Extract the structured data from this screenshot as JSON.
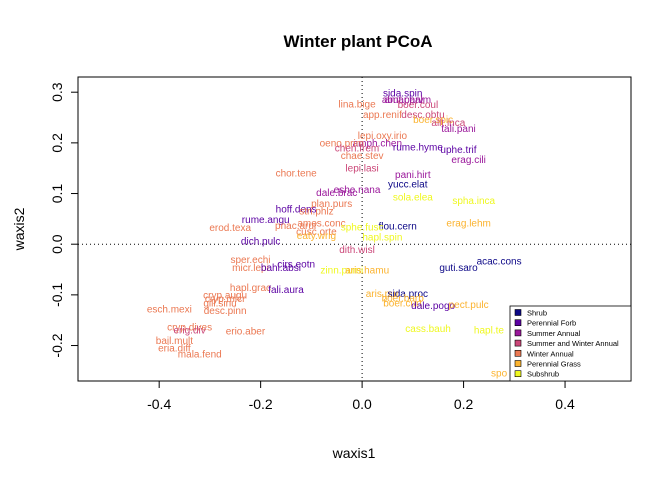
{
  "chart_data": {
    "type": "scatter",
    "title": "Winter plant PCoA",
    "xlabel": "waxis1",
    "ylabel": "waxis2",
    "xlim": [
      -0.56,
      0.53
    ],
    "ylim": [
      -0.27,
      0.33
    ],
    "x_ticks": [
      -0.4,
      -0.2,
      0.0,
      0.2,
      0.4
    ],
    "x_tick_labels": [
      "-0.4",
      "-0.2",
      "0.0",
      "0.2",
      "0.4"
    ],
    "y_ticks": [
      -0.2,
      -0.1,
      0.0,
      0.1,
      0.2,
      0.3
    ],
    "y_tick_labels": [
      "-0.2",
      "-0.1",
      "0.0",
      "0.1",
      "0.2",
      "0.3"
    ],
    "reference_lines": {
      "x": 0,
      "y": 0,
      "style": "dotted"
    },
    "legend_position": "bottom-right",
    "groups": [
      {
        "name": "Shrub",
        "color": "#0d0887"
      },
      {
        "name": "Perennial Forb",
        "color": "#5b02a3"
      },
      {
        "name": "Summer Annual",
        "color": "#9a179b"
      },
      {
        "name": "Summer and Winter Annual",
        "color": "#cb4678"
      },
      {
        "name": "Winter Annual",
        "color": "#eb7852"
      },
      {
        "name": "Perennial Grass",
        "color": "#fbb32f"
      },
      {
        "name": "Subshrub",
        "color": "#eff821"
      }
    ],
    "points": [
      {
        "label": "sida.spin",
        "x": 0.08,
        "y": 0.298,
        "group": 1
      },
      {
        "label": "abut.parv",
        "x": 0.08,
        "y": 0.286,
        "group": 2
      },
      {
        "label": "amar.palm",
        "x": 0.09,
        "y": 0.286,
        "group": 2
      },
      {
        "label": "lina.bige",
        "x": -0.01,
        "y": 0.277,
        "group": 4
      },
      {
        "label": "boer.coul",
        "x": 0.11,
        "y": 0.276,
        "group": 3
      },
      {
        "label": "app.renif",
        "x": 0.04,
        "y": 0.256,
        "group": 4
      },
      {
        "label": "desc.obtu",
        "x": 0.12,
        "y": 0.256,
        "group": 3
      },
      {
        "label": "boer.spic",
        "x": 0.14,
        "y": 0.246,
        "group": 5
      },
      {
        "label": "allt.inca",
        "x": 0.17,
        "y": 0.24,
        "group": 3
      },
      {
        "label": "tali.pani",
        "x": 0.19,
        "y": 0.228,
        "group": 2
      },
      {
        "label": "lepi.oxy.irio",
        "x": 0.04,
        "y": 0.215,
        "group": 4
      },
      {
        "label": "amph.chen",
        "x": 0.03,
        "y": 0.2,
        "group": 2
      },
      {
        "label": "oeno.prim",
        "x": -0.04,
        "y": 0.2,
        "group": 4
      },
      {
        "label": "rume.hyme",
        "x": 0.11,
        "y": 0.192,
        "group": 1
      },
      {
        "label": "uphe.trif",
        "x": 0.19,
        "y": 0.187,
        "group": 1
      },
      {
        "label": "chen.frem",
        "x": -0.01,
        "y": 0.19,
        "group": 3
      },
      {
        "label": "chae.stev",
        "x": 0.0,
        "y": 0.175,
        "group": 4
      },
      {
        "label": "erag.cili",
        "x": 0.21,
        "y": 0.167,
        "group": 2
      },
      {
        "label": "lepi.lasi",
        "x": 0.0,
        "y": 0.15,
        "group": 3
      },
      {
        "label": "pani.hirt",
        "x": 0.1,
        "y": 0.138,
        "group": 2
      },
      {
        "label": "chor.tene",
        "x": -0.13,
        "y": 0.141,
        "group": 4
      },
      {
        "label": "yucc.elat",
        "x": 0.09,
        "y": 0.119,
        "group": 0
      },
      {
        "label": "eshe.nana",
        "x": -0.01,
        "y": 0.108,
        "group": 2
      },
      {
        "label": "dale.brac",
        "x": -0.05,
        "y": 0.102,
        "group": 2
      },
      {
        "label": "sola.elea",
        "x": 0.1,
        "y": 0.093,
        "group": 6
      },
      {
        "label": "spha.inca",
        "x": 0.22,
        "y": 0.086,
        "group": 6
      },
      {
        "label": "plan.purs",
        "x": -0.06,
        "y": 0.08,
        "group": 4
      },
      {
        "label": "hoff.dens",
        "x": -0.13,
        "y": 0.069,
        "group": 1
      },
      {
        "label": "stri.phlz",
        "x": -0.09,
        "y": 0.066,
        "group": 4
      },
      {
        "label": "rume.angu",
        "x": -0.19,
        "y": 0.049,
        "group": 1
      },
      {
        "label": "ames.conc",
        "x": -0.08,
        "y": 0.042,
        "group": 4
      },
      {
        "label": "erag.lehm",
        "x": 0.21,
        "y": 0.042,
        "group": 5
      },
      {
        "label": "pnac.arur",
        "x": -0.13,
        "y": 0.037,
        "group": 4
      },
      {
        "label": "erod.texa",
        "x": -0.26,
        "y": 0.033,
        "group": 4
      },
      {
        "label": "flou.cern",
        "x": 0.07,
        "y": 0.036,
        "group": 0
      },
      {
        "label": "sphe.fusc",
        "x": 0.0,
        "y": 0.034,
        "group": 6
      },
      {
        "label": "cusc.orte",
        "x": -0.09,
        "y": 0.025,
        "group": 4
      },
      {
        "label": "eaty.wrig",
        "x": -0.09,
        "y": 0.017,
        "group": 5
      },
      {
        "label": "hapl.spin",
        "x": 0.04,
        "y": 0.014,
        "group": 6
      },
      {
        "label": "dich.pulc",
        "x": -0.2,
        "y": 0.006,
        "group": 1
      },
      {
        "label": "dith.wisl",
        "x": -0.01,
        "y": -0.01,
        "group": 3
      },
      {
        "label": "sper.echi",
        "x": -0.22,
        "y": -0.03,
        "group": 4
      },
      {
        "label": "acac.cons",
        "x": 0.27,
        "y": -0.033,
        "group": 0
      },
      {
        "label": "cirs.eotn",
        "x": -0.13,
        "y": -0.039,
        "group": 1
      },
      {
        "label": "micr.lepi",
        "x": -0.22,
        "y": -0.046,
        "group": 4
      },
      {
        "label": "bahi.absi",
        "x": -0.16,
        "y": -0.046,
        "group": 1
      },
      {
        "label": "guti.saro",
        "x": 0.19,
        "y": -0.046,
        "group": 0
      },
      {
        "label": "zinn.pumi",
        "x": -0.04,
        "y": -0.051,
        "group": 6
      },
      {
        "label": "aris.hamu",
        "x": 0.01,
        "y": -0.051,
        "group": 5
      },
      {
        "label": "hapl.grac",
        "x": -0.22,
        "y": -0.085,
        "group": 4
      },
      {
        "label": "fali.aura",
        "x": -0.15,
        "y": -0.089,
        "group": 1
      },
      {
        "label": "aris.pur",
        "x": 0.04,
        "y": -0.097,
        "group": 5
      },
      {
        "label": "sida.proc",
        "x": 0.09,
        "y": -0.097,
        "group": 0
      },
      {
        "label": "cryp.augu",
        "x": -0.27,
        "y": -0.1,
        "group": 4
      },
      {
        "label": "cryp.micr",
        "x": -0.27,
        "y": -0.107,
        "group": 4
      },
      {
        "label": "boer.barb",
        "x": 0.08,
        "y": -0.106,
        "group": 5
      },
      {
        "label": "gill.sinu",
        "x": -0.28,
        "y": -0.116,
        "group": 4
      },
      {
        "label": "boer.curt",
        "x": 0.08,
        "y": -0.116,
        "group": 5
      },
      {
        "label": "dale.pogo",
        "x": 0.14,
        "y": -0.121,
        "group": 1
      },
      {
        "label": "pect.pulc",
        "x": 0.21,
        "y": -0.119,
        "group": 5
      },
      {
        "label": "esch.mexi",
        "x": -0.38,
        "y": -0.128,
        "group": 4
      },
      {
        "label": "desc.pinn",
        "x": -0.27,
        "y": -0.131,
        "group": 4
      },
      {
        "label": "cass.bauh",
        "x": 0.13,
        "y": -0.166,
        "group": 6
      },
      {
        "label": "hapl.te",
        "x": 0.25,
        "y": -0.169,
        "group": 6
      },
      {
        "label": "cryp.dives",
        "x": -0.34,
        "y": -0.163,
        "group": 4
      },
      {
        "label": "erio.aber",
        "x": -0.23,
        "y": -0.171,
        "group": 4
      },
      {
        "label": "erig.div",
        "x": -0.34,
        "y": -0.169,
        "group": 3
      },
      {
        "label": "bail.mult",
        "x": -0.37,
        "y": -0.19,
        "group": 4
      },
      {
        "label": "eria.diff",
        "x": -0.37,
        "y": -0.205,
        "group": 4
      },
      {
        "label": "mala.fend",
        "x": -0.32,
        "y": -0.217,
        "group": 4
      },
      {
        "label": "spo",
        "x": 0.27,
        "y": -0.254,
        "group": 5
      }
    ]
  }
}
